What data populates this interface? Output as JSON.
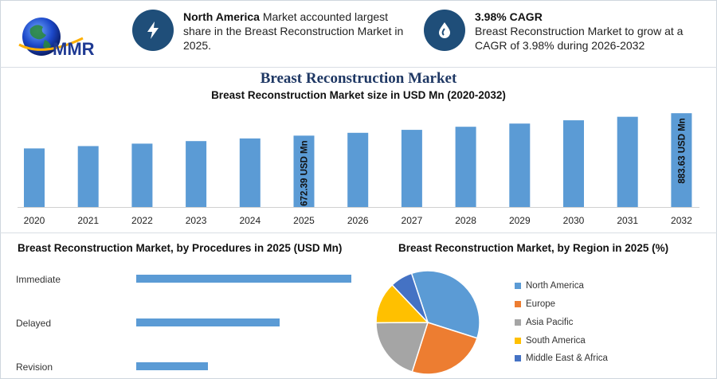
{
  "logo": {
    "text": "MMR"
  },
  "highlights": [
    {
      "icon": "lightning-icon",
      "bold": "North America",
      "text": " Market accounted largest share in the Breast Reconstruction Market in 2025."
    },
    {
      "icon": "drop-icon",
      "bold": "3.98% CAGR",
      "text": "Breast Reconstruction Market to grow at a CAGR of 3.98% during 2026-2032"
    }
  ],
  "main_title": "Breast Reconstruction Market",
  "colors": {
    "bar": "#5b9bd5",
    "navy": "#1f4e79",
    "europe": "#ed7d31",
    "asia": "#a5a5a5",
    "south_america": "#ffc000",
    "mea": "#4472c4"
  },
  "chart_data": [
    {
      "type": "bar",
      "title": "Breast Reconstruction Market size in USD Mn (2020-2032)",
      "categories": [
        "2020",
        "2021",
        "2022",
        "2023",
        "2024",
        "2025",
        "2026",
        "2027",
        "2028",
        "2029",
        "2030",
        "2031",
        "2032"
      ],
      "values": [
        552,
        574,
        597,
        621,
        646,
        672.39,
        699,
        727,
        756,
        786,
        817,
        850,
        883.63
      ],
      "data_labels": {
        "2025": "672.39 USD Mn",
        "2032": "883.63 USD Mn"
      },
      "ylim": [
        0,
        900
      ],
      "grid": false
    },
    {
      "type": "bar",
      "orientation": "horizontal",
      "title": "Breast Reconstruction Market, by Procedures in 2025 (USD Mn)",
      "categories": [
        "Immediate",
        "Delayed",
        "Revision"
      ],
      "values": [
        330,
        220,
        110
      ],
      "xlim": [
        0,
        330
      ]
    },
    {
      "type": "pie",
      "title": "Breast Reconstruction Market, by Region in 2025 (%)",
      "labels": [
        "North America",
        "Europe",
        "Asia Pacific",
        "South America",
        "Middle East & Africa"
      ],
      "values": [
        35,
        25,
        20,
        13,
        7
      ],
      "legend": "right"
    }
  ]
}
